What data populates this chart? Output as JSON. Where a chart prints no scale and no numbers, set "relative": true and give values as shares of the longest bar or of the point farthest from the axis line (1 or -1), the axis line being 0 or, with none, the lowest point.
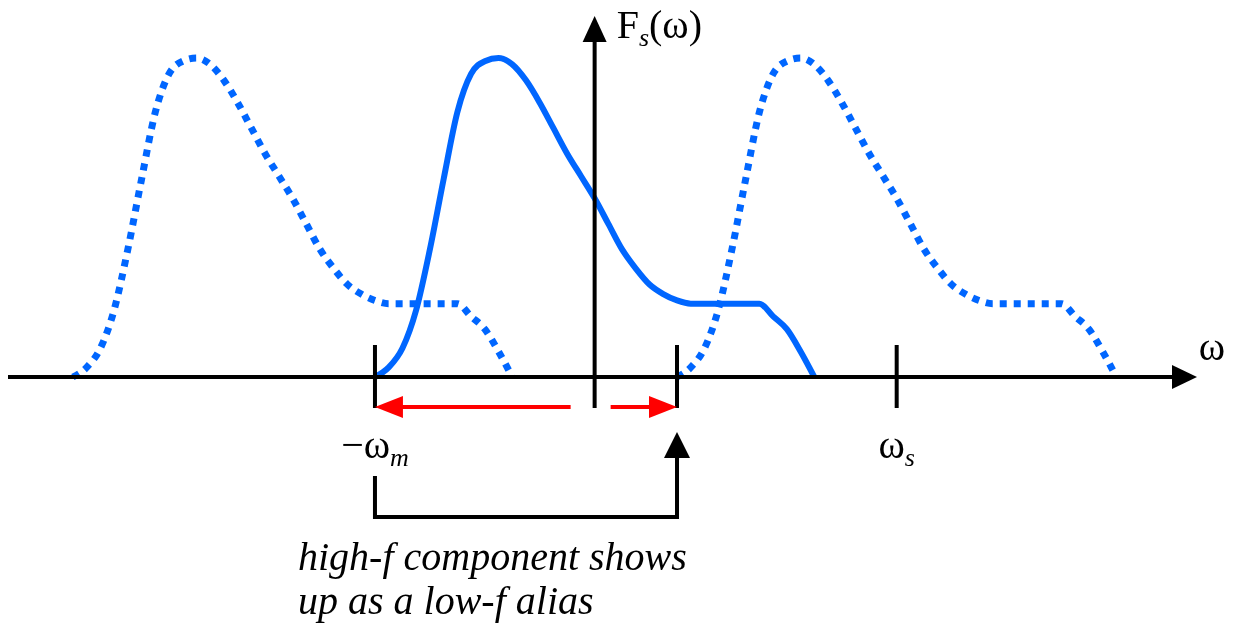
{
  "chart_data": {
    "type": "line",
    "relative": true,
    "ylabel": "F$_{s}$(ω)",
    "xlabel": "ω",
    "categories": [
      null,
      null,
      null,
      null,
      null,
      null,
      null,
      null,
      null,
      null,
      null,
      null,
      null,
      null,
      null,
      null,
      null,
      null,
      null,
      null,
      null,
      null,
      null,
      null,
      null,
      null,
      "−ω$_{m}$",
      null,
      null,
      null,
      null,
      null,
      null,
      null,
      null,
      null,
      null,
      null,
      null,
      null,
      null,
      null,
      null,
      null,
      null,
      null,
      null,
      null,
      null,
      null,
      null,
      null,
      null,
      null,
      null,
      null,
      null,
      null,
      null,
      null,
      null,
      null,
      null,
      null,
      "ω$_{s}$",
      null,
      null,
      null,
      null,
      null,
      null,
      null,
      null,
      null,
      null,
      null,
      null,
      null,
      null,
      null,
      null,
      null,
      null,
      null,
      null,
      null
    ],
    "series": [
      {
        "color": "#0066ff",
        "line_style": "dotted",
        "values": [
          null,
          null,
          null,
          null,
          0,
          0.03,
          0.09,
          0.21,
          0.4,
          0.62,
          0.83,
          0.95,
          0.99,
          1,
          0.98,
          0.93,
          0.86,
          0.78,
          0.7,
          0.63,
          0.56,
          0.48,
          0.4,
          0.34,
          0.29,
          0.26,
          0.24,
          0.23,
          0.23,
          0.23,
          0.23,
          0.23,
          0.23,
          0.19,
          0.15,
          0.08,
          0,
          null,
          null,
          null,
          null,
          null,
          null,
          null,
          null,
          null,
          null,
          null,
          null,
          null,
          null,
          null,
          null,
          null,
          null,
          null,
          null,
          null,
          null,
          null,
          null,
          null,
          null,
          null,
          null,
          null,
          null,
          null,
          null,
          null,
          null,
          null,
          null,
          null,
          null,
          null,
          null,
          null,
          null,
          null,
          null,
          null,
          null,
          null,
          null,
          null
        ]
      },
      {
        "color": "#0066ff",
        "line_style": "solid",
        "values": [
          null,
          null,
          null,
          null,
          null,
          null,
          null,
          null,
          null,
          null,
          null,
          null,
          null,
          null,
          null,
          null,
          null,
          null,
          null,
          null,
          null,
          null,
          null,
          null,
          null,
          null,
          0,
          0.03,
          0.09,
          0.21,
          0.4,
          0.62,
          0.83,
          0.95,
          0.99,
          1,
          0.98,
          0.93,
          0.86,
          0.78,
          0.7,
          0.63,
          0.56,
          0.48,
          0.4,
          0.34,
          0.29,
          0.26,
          0.24,
          0.23,
          0.23,
          0.23,
          0.23,
          0.23,
          0.23,
          0.19,
          0.15,
          0.08,
          0,
          null,
          null,
          null,
          null,
          null,
          null,
          null,
          null,
          null,
          null,
          null,
          null,
          null,
          null,
          null,
          null,
          null,
          null,
          null,
          null,
          null,
          null,
          null,
          null,
          null,
          null,
          null
        ]
      },
      {
        "color": "#0066ff",
        "line_style": "dotted",
        "values": [
          null,
          null,
          null,
          null,
          null,
          null,
          null,
          null,
          null,
          null,
          null,
          null,
          null,
          null,
          null,
          null,
          null,
          null,
          null,
          null,
          null,
          null,
          null,
          null,
          null,
          null,
          null,
          null,
          null,
          null,
          null,
          null,
          null,
          null,
          null,
          null,
          null,
          null,
          null,
          null,
          null,
          null,
          null,
          null,
          null,
          null,
          null,
          null,
          0,
          0.03,
          0.09,
          0.21,
          0.4,
          0.62,
          0.83,
          0.95,
          0.99,
          1,
          0.98,
          0.93,
          0.86,
          0.78,
          0.7,
          0.63,
          0.56,
          0.48,
          0.4,
          0.34,
          0.29,
          0.26,
          0.24,
          0.23,
          0.23,
          0.23,
          0.23,
          0.23,
          0.23,
          0.19,
          0.15,
          0.08,
          0,
          null,
          null,
          null,
          null,
          null
        ]
      }
    ],
    "annotations": [
      "high-f component shows up as a low-f alias"
    ]
  }
}
